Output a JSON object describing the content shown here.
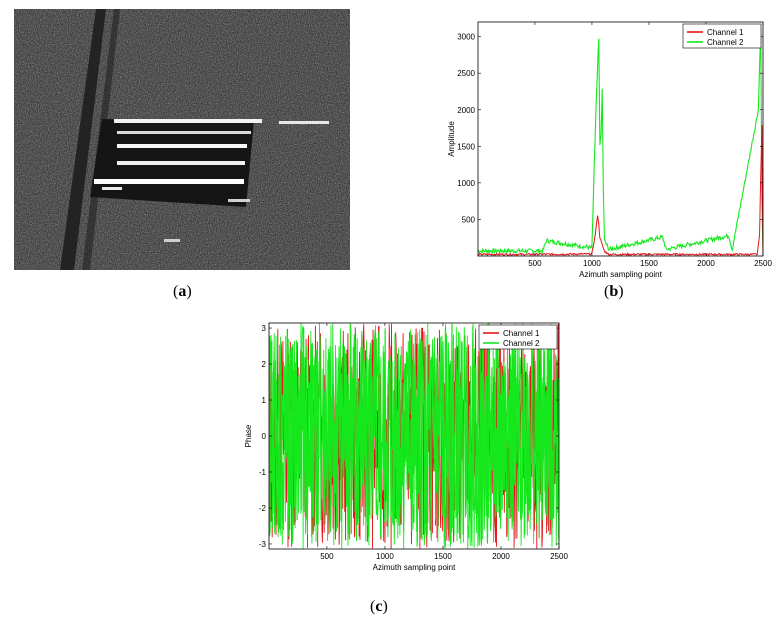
{
  "panels": {
    "a": {
      "label_pre": "(",
      "label_letter": "a",
      "label_post": ")"
    },
    "b": {
      "label_pre": "(",
      "label_letter": "b",
      "label_post": ")"
    },
    "c": {
      "label_pre": "(",
      "label_letter": "c",
      "label_post": ")"
    }
  },
  "chart_data": [
    {
      "type": "line",
      "panel": "b",
      "xlabel": "Azimuth sampling point",
      "ylabel": "Amplitude",
      "xlim": [
        1,
        2500
      ],
      "ylim": [
        0,
        3200
      ],
      "xticks": [
        500,
        1000,
        1500,
        2000,
        2500
      ],
      "yticks": [
        500,
        1000,
        1500,
        2000,
        2500,
        3000
      ],
      "legend_position": "top-right",
      "series": [
        {
          "name": "Channel 1",
          "color": "#e8131a",
          "x": [
            1,
            500,
            1000,
            1030,
            1050,
            1060,
            1070,
            1090,
            1110,
            1150,
            1500,
            2000,
            2450,
            2470,
            2490,
            2500
          ],
          "values": [
            20,
            20,
            25,
            300,
            560,
            430,
            250,
            150,
            60,
            20,
            20,
            20,
            20,
            300,
            1800,
            20
          ]
        },
        {
          "name": "Channel 2",
          "color": "#15e81c",
          "x": [
            1,
            570,
            600,
            1000,
            1020,
            1040,
            1060,
            1070,
            1080,
            1090,
            1100,
            1110,
            1150,
            1620,
            1650,
            2200,
            2230,
            2460,
            2480,
            2490,
            2500
          ],
          "values": [
            60,
            60,
            200,
            100,
            1200,
            2200,
            2960,
            1500,
            1650,
            2250,
            900,
            200,
            80,
            250,
            80,
            270,
            80,
            2000,
            3180,
            800,
            60
          ]
        }
      ]
    },
    {
      "type": "line",
      "panel": "c",
      "xlabel": "Azimuth sampling point",
      "ylabel": "Phase",
      "xlim": [
        1,
        2500
      ],
      "ylim": [
        -3.14,
        3.14
      ],
      "xticks": [
        500,
        1000,
        1500,
        2000,
        2500
      ],
      "yticks": [
        -3,
        -2,
        -1,
        0,
        1,
        2,
        3
      ],
      "legend_position": "top-right",
      "series": [
        {
          "name": "Channel 1",
          "color": "#e8131a",
          "description_range": [
            -3.14,
            3.14
          ]
        },
        {
          "name": "Channel 2",
          "color": "#15e81c",
          "description_range": [
            -3.14,
            3.14
          ]
        }
      ]
    }
  ]
}
